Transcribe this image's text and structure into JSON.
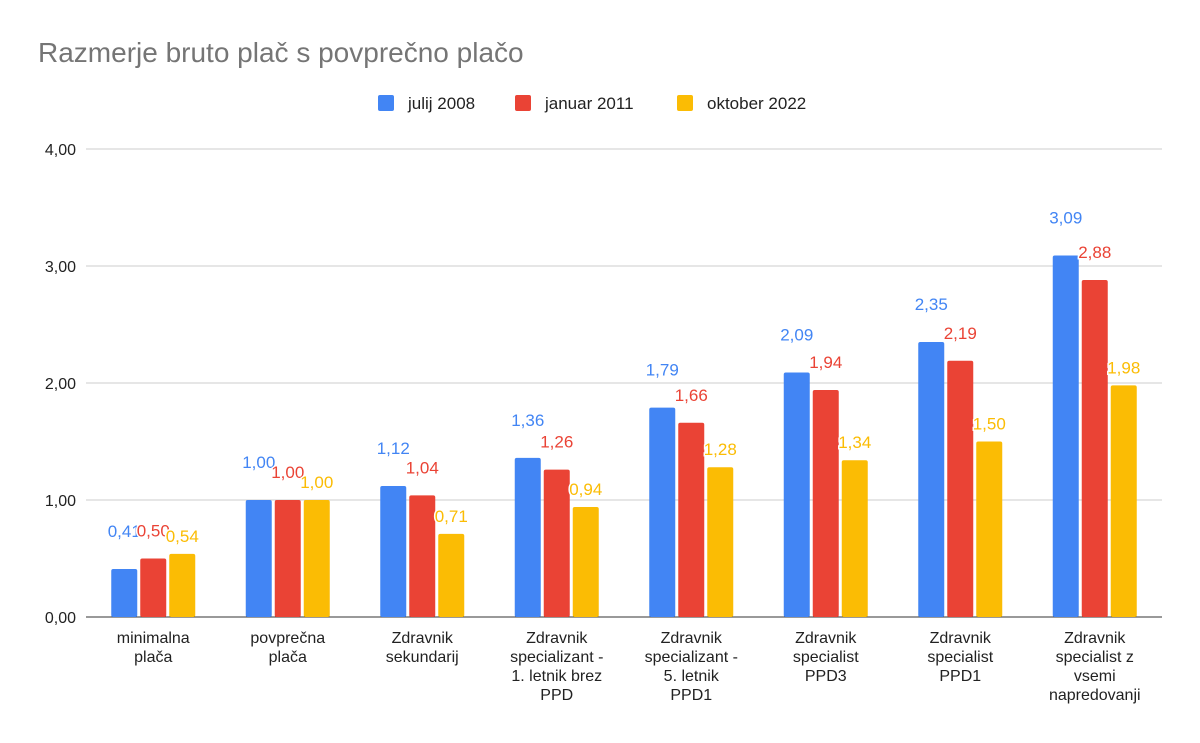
{
  "chart_data": {
    "type": "bar",
    "title": "Razmerje bruto plač s povprečno plačo",
    "categories": [
      [
        "minimalna",
        "plača"
      ],
      [
        "povprečna",
        "plača"
      ],
      [
        "Zdravnik",
        "sekundarij"
      ],
      [
        "Zdravnik",
        "specializant -",
        "1. letnik brez",
        "PPD"
      ],
      [
        "Zdravnik",
        "specializant  -",
        "5. letnik",
        "PPD1"
      ],
      [
        "Zdravnik",
        "specialist",
        "PPD3"
      ],
      [
        "Zdravnik",
        "specialist",
        "PPD1"
      ],
      [
        "Zdravnik",
        "specialist z",
        "vsemi",
        "napredovanji"
      ]
    ],
    "series": [
      {
        "name": "julij 2008",
        "color": "#4285F4",
        "values": [
          0.41,
          1.0,
          1.12,
          1.36,
          1.79,
          2.09,
          2.35,
          3.09
        ]
      },
      {
        "name": "januar 2011",
        "color": "#EA4335",
        "values": [
          0.5,
          1.0,
          1.04,
          1.26,
          1.66,
          1.94,
          2.19,
          2.88
        ]
      },
      {
        "name": "oktober 2022",
        "color": "#FBBC04",
        "values": [
          0.54,
          1.0,
          0.71,
          0.94,
          1.28,
          1.34,
          1.5,
          1.98
        ]
      }
    ],
    "ylim": [
      0,
      4
    ],
    "yticks": [
      "0,00",
      "1,00",
      "2,00",
      "3,00",
      "4,00"
    ],
    "grid": true,
    "legend": "top",
    "decimal_separator": ","
  }
}
